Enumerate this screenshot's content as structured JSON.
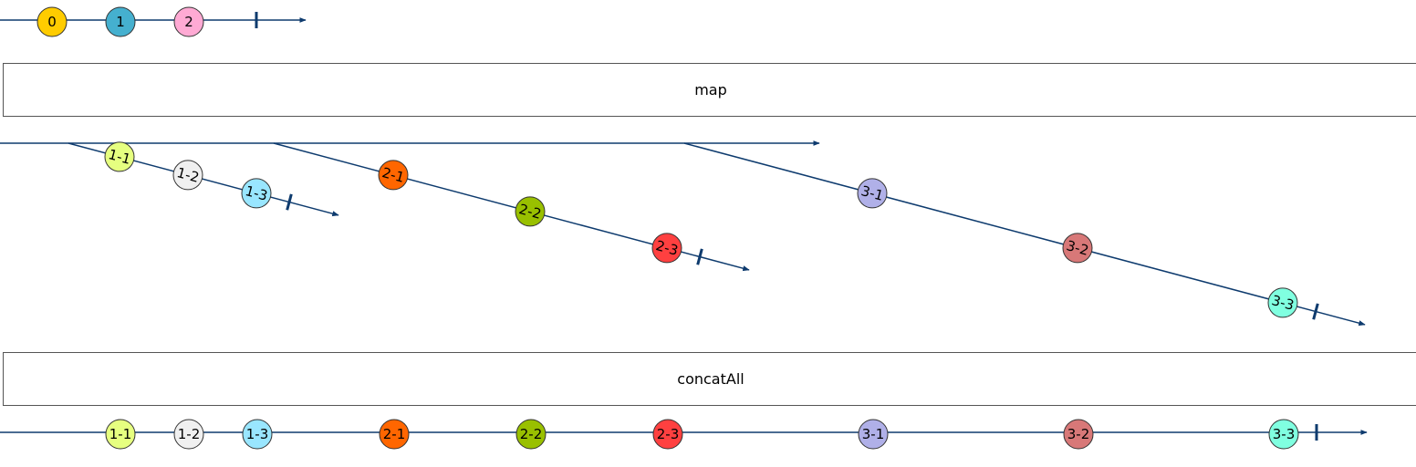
{
  "colors": {
    "line": "#0e3b6e",
    "border": "#555555"
  },
  "operators": {
    "map": "map",
    "concat": "concatAll"
  },
  "source": {
    "marbles": [
      {
        "label": "0",
        "color": "#ffcc00"
      },
      {
        "label": "1",
        "color": "#45b0cf"
      },
      {
        "label": "2",
        "color": "#ffaad4"
      }
    ]
  },
  "inner_streams": [
    {
      "marbles": [
        {
          "label": "1-1",
          "color": "#e6ff80"
        },
        {
          "label": "1-2",
          "color": "#f0f0f0"
        },
        {
          "label": "1-3",
          "color": "#99e6ff"
        }
      ]
    },
    {
      "marbles": [
        {
          "label": "2-1",
          "color": "#ff6600"
        },
        {
          "label": "2-2",
          "color": "#99c000"
        },
        {
          "label": "2-3",
          "color": "#ff4040"
        }
      ]
    },
    {
      "marbles": [
        {
          "label": "3-1",
          "color": "#b0b0e8"
        },
        {
          "label": "3-2",
          "color": "#d87878"
        },
        {
          "label": "3-3",
          "color": "#80ffe0"
        }
      ]
    }
  ],
  "output": {
    "marbles": [
      {
        "label": "1-1",
        "color": "#e6ff80"
      },
      {
        "label": "1-2",
        "color": "#f0f0f0"
      },
      {
        "label": "1-3",
        "color": "#99e6ff"
      },
      {
        "label": "2-1",
        "color": "#ff6600"
      },
      {
        "label": "2-2",
        "color": "#99c000"
      },
      {
        "label": "2-3",
        "color": "#ff4040"
      },
      {
        "label": "3-1",
        "color": "#b0b0e8"
      },
      {
        "label": "3-2",
        "color": "#d87878"
      },
      {
        "label": "3-3",
        "color": "#80ffe0"
      }
    ]
  }
}
